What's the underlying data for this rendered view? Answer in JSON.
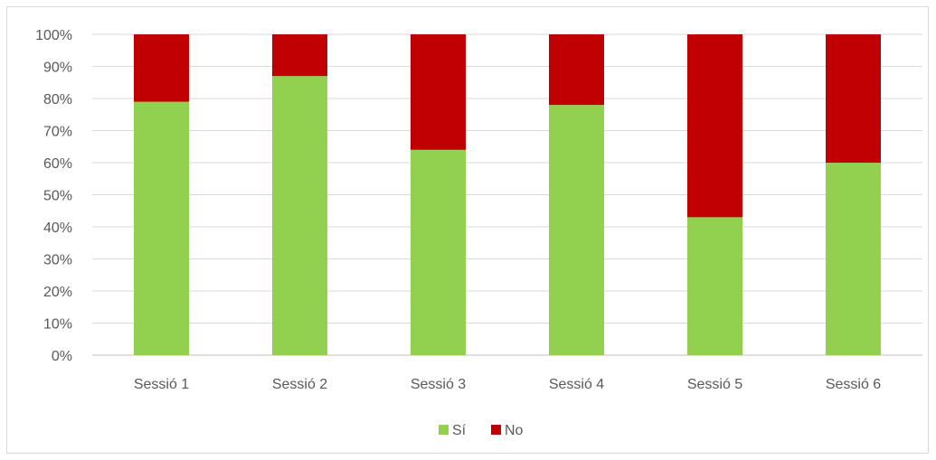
{
  "chart_data": {
    "type": "bar",
    "stacked": true,
    "categories": [
      "Sessió 1",
      "Sessió 2",
      "Sessió 3",
      "Sessió 4",
      "Sessió 5",
      "Sessió 6"
    ],
    "series": [
      {
        "name": "Sí",
        "values": [
          79,
          87,
          64,
          78,
          43,
          60
        ],
        "color": "#92d050"
      },
      {
        "name": "No",
        "values": [
          21,
          13,
          36,
          22,
          57,
          40
        ],
        "color": "#c00000"
      }
    ],
    "ylim": [
      0,
      100
    ],
    "yticks": [
      "0%",
      "10%",
      "20%",
      "30%",
      "40%",
      "50%",
      "60%",
      "70%",
      "80%",
      "90%",
      "100%"
    ],
    "grid": true,
    "legend_position": "bottom",
    "title": "",
    "xlabel": "",
    "ylabel": ""
  }
}
